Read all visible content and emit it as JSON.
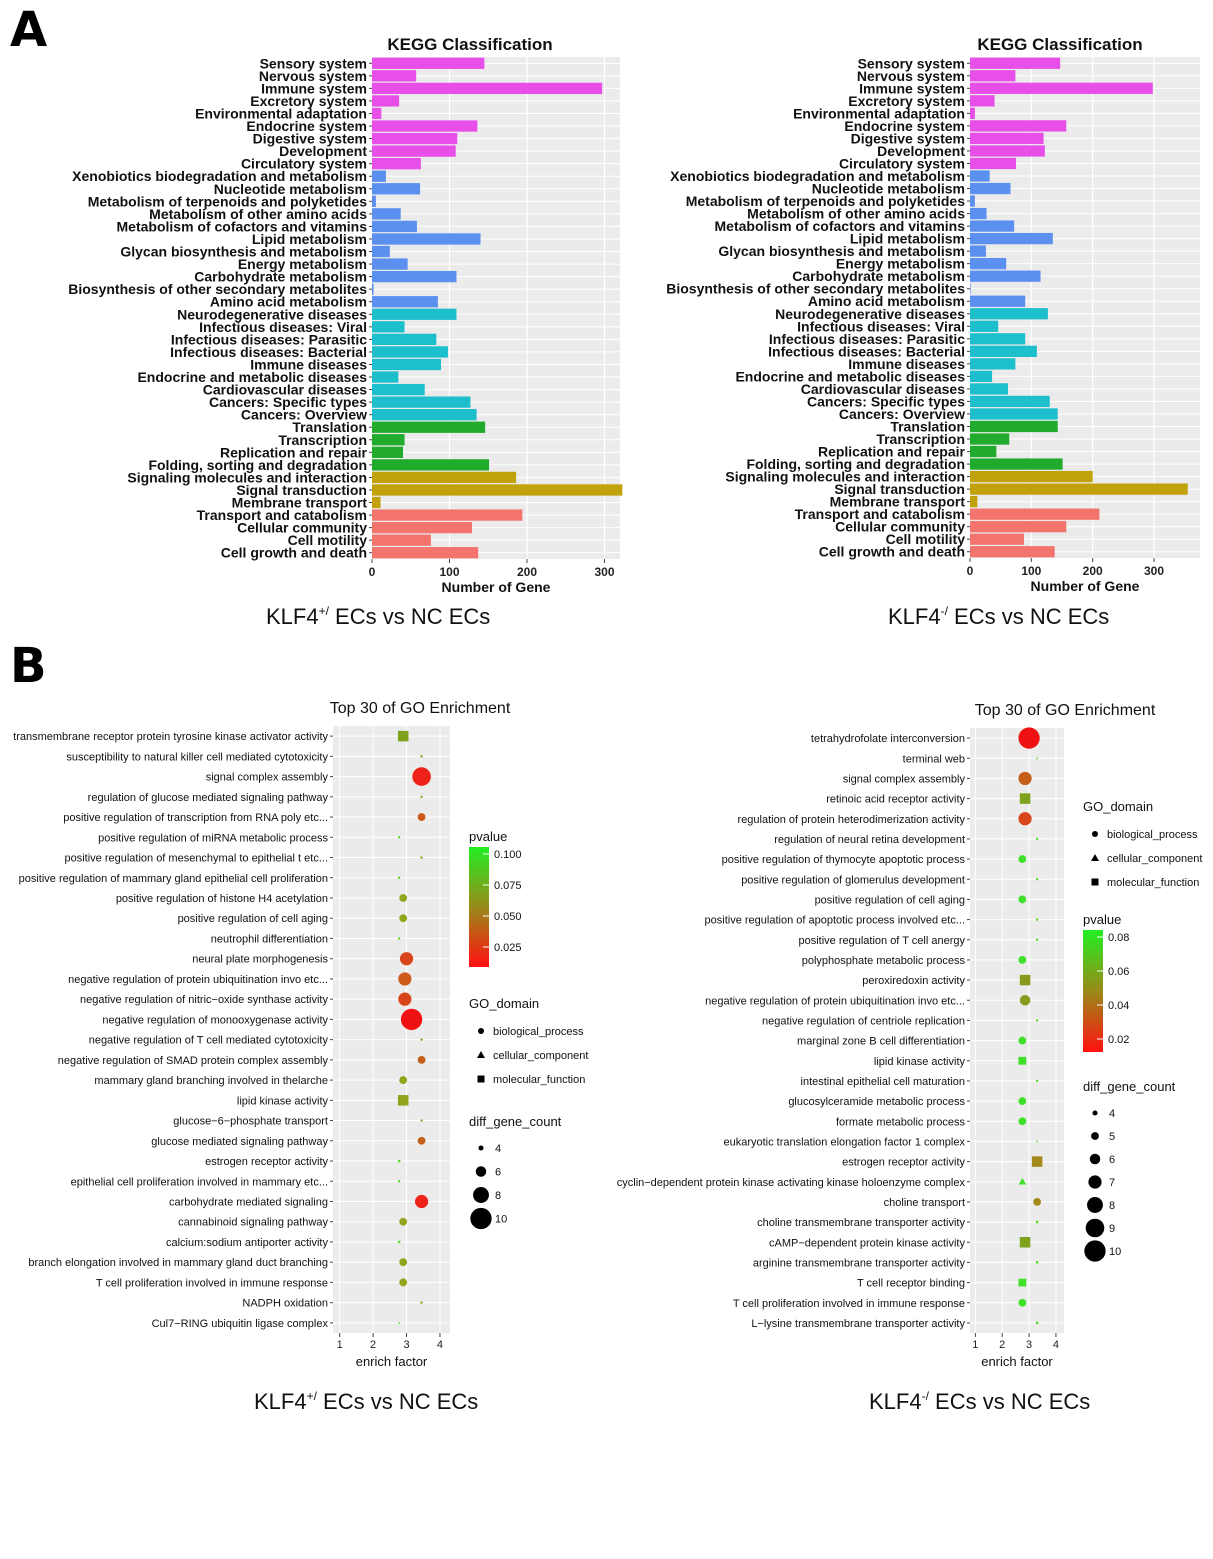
{
  "panels": {
    "a": "A",
    "b": "B"
  },
  "chart_data": [
    {
      "type": "bar",
      "title": "KEGG Classification",
      "xlabel": "Number of Gene",
      "caption": {
        "main": "KLF4",
        "sup": "+/",
        "rest": "ECs vs  NC ECs"
      },
      "xlim": [
        0,
        320
      ],
      "xticks": [
        0,
        100,
        200,
        300
      ],
      "categories": [
        "Sensory system",
        "Nervous system",
        "Immune system",
        "Excretory system",
        "Environmental adaptation",
        "Endocrine system",
        "Digestive system",
        "Development",
        "Circulatory system",
        "Xenobiotics biodegradation and metabolism",
        "Nucleotide metabolism",
        "Metabolism of terpenoids and polyketides",
        "Metabolism of other amino acids",
        "Metabolism of cofactors and vitamins",
        "Lipid metabolism",
        "Glycan biosynthesis and metabolism",
        "Energy metabolism",
        "Carbohydrate metabolism",
        "Biosynthesis of other secondary metabolites",
        "Amino acid metabolism",
        "Neurodegenerative diseases",
        "Infectious diseases: Viral",
        "Infectious diseases: Parasitic",
        "Infectious diseases: Bacterial",
        "Immune diseases",
        "Endocrine and metabolic diseases",
        "Cardiovascular diseases",
        "Cancers: Specific types",
        "Cancers: Overview",
        "Translation",
        "Transcription",
        "Replication and repair",
        "Folding, sorting and degradation",
        "Signaling molecules and interaction",
        "Signal transduction",
        "Membrane transport",
        "Transport and catabolism",
        "Cellular community",
        "Cell motility",
        "Cell growth and death"
      ],
      "values": [
        145,
        57,
        297,
        35,
        12,
        136,
        110,
        108,
        63,
        18,
        62,
        5,
        37,
        58,
        140,
        23,
        46,
        109,
        2,
        85,
        109,
        42,
        83,
        98,
        89,
        34,
        68,
        127,
        135,
        146,
        42,
        40,
        151,
        186,
        323,
        11,
        194,
        129,
        76,
        137
      ],
      "group_colors": [
        "#e84ee8",
        "#e84ee8",
        "#e84ee8",
        "#e84ee8",
        "#e84ee8",
        "#e84ee8",
        "#e84ee8",
        "#e84ee8",
        "#e84ee8",
        "#5b8ff0",
        "#5b8ff0",
        "#5b8ff0",
        "#5b8ff0",
        "#5b8ff0",
        "#5b8ff0",
        "#5b8ff0",
        "#5b8ff0",
        "#5b8ff0",
        "#5b8ff0",
        "#5b8ff0",
        "#1ebfcc",
        "#1ebfcc",
        "#1ebfcc",
        "#1ebfcc",
        "#1ebfcc",
        "#1ebfcc",
        "#1ebfcc",
        "#1ebfcc",
        "#1ebfcc",
        "#20ab2c",
        "#20ab2c",
        "#20ab2c",
        "#20ab2c",
        "#c2a20a",
        "#c2a20a",
        "#c2a20a",
        "#f2746c",
        "#f2746c",
        "#f2746c",
        "#f2746c"
      ]
    },
    {
      "type": "bar",
      "title": "KEGG Classification",
      "xlabel": "Number of Gene",
      "caption": {
        "main": "KLF4",
        "sup": "-/",
        "rest": "ECs vs  NC ECs"
      },
      "xlim": [
        0,
        375
      ],
      "xticks": [
        0,
        100,
        200,
        300
      ],
      "categories": [
        "Sensory system",
        "Nervous system",
        "Immune system",
        "Excretory system",
        "Environmental adaptation",
        "Endocrine system",
        "Digestive system",
        "Development",
        "Circulatory system",
        "Xenobiotics biodegradation and metabolism",
        "Nucleotide metabolism",
        "Metabolism of terpenoids and polyketides",
        "Metabolism of other amino acids",
        "Metabolism of cofactors and vitamins",
        "Lipid metabolism",
        "Glycan biosynthesis and metabolism",
        "Energy metabolism",
        "Carbohydrate metabolism",
        "Biosynthesis of other secondary metabolites",
        "Amino acid metabolism",
        "Neurodegenerative diseases",
        "Infectious diseases: Viral",
        "Infectious diseases: Parasitic",
        "Infectious diseases: Bacterial",
        "Immune diseases",
        "Endocrine and metabolic diseases",
        "Cardiovascular diseases",
        "Cancers: Specific types",
        "Cancers: Overview",
        "Translation",
        "Transcription",
        "Replication and repair",
        "Folding, sorting and degradation",
        "Signaling molecules and interaction",
        "Signal transduction",
        "Membrane transport",
        "Transport and catabolism",
        "Cellular community",
        "Cell motility",
        "Cell growth and death"
      ],
      "values": [
        147,
        74,
        298,
        40,
        8,
        157,
        120,
        122,
        75,
        32,
        66,
        8,
        27,
        72,
        135,
        26,
        59,
        115,
        1,
        90,
        127,
        46,
        90,
        109,
        74,
        36,
        62,
        130,
        143,
        143,
        64,
        43,
        151,
        200,
        355,
        12,
        211,
        157,
        88,
        138
      ],
      "group_colors": [
        "#e84ee8",
        "#e84ee8",
        "#e84ee8",
        "#e84ee8",
        "#e84ee8",
        "#e84ee8",
        "#e84ee8",
        "#e84ee8",
        "#e84ee8",
        "#5b8ff0",
        "#5b8ff0",
        "#5b8ff0",
        "#5b8ff0",
        "#5b8ff0",
        "#5b8ff0",
        "#5b8ff0",
        "#5b8ff0",
        "#5b8ff0",
        "#5b8ff0",
        "#5b8ff0",
        "#1ebfcc",
        "#1ebfcc",
        "#1ebfcc",
        "#1ebfcc",
        "#1ebfcc",
        "#1ebfcc",
        "#1ebfcc",
        "#1ebfcc",
        "#1ebfcc",
        "#20ab2c",
        "#20ab2c",
        "#20ab2c",
        "#20ab2c",
        "#c2a20a",
        "#c2a20a",
        "#c2a20a",
        "#f2746c",
        "#f2746c",
        "#f2746c",
        "#f2746c"
      ]
    },
    {
      "type": "scatter",
      "title": "Top 30 of GO Enrichment",
      "xlabel": "enrich factor",
      "caption": {
        "main": "KLF4",
        "sup": "+/",
        "rest": "ECs vs  NC ECs"
      },
      "xlim": [
        0.8,
        4.3
      ],
      "xticks": [
        1,
        2,
        3,
        4
      ],
      "legend": {
        "pvalue_title": "pvalue",
        "pvalue_ticks": [
          "0.100",
          "0.075",
          "0.050",
          "0.025"
        ],
        "domain_title": "GO_domain",
        "domains": [
          "biological_process",
          "cellular_component",
          "molecular_function"
        ],
        "count_title": "diff_gene_count",
        "counts": [
          "4",
          "6",
          "8",
          "10"
        ]
      },
      "categories": [
        "transmembrane receptor protein tyrosine kinase activator activity",
        "susceptibility to natural killer cell mediated cytotoxicity",
        "signal complex assembly",
        "regulation of glucose mediated signaling pathway",
        "positive regulation of transcription from RNA poly etc...",
        "positive regulation of miRNA metabolic process",
        "positive regulation of mesenchymal to epithelial t etc...",
        "positive regulation of mammary gland epithelial cell proliferation",
        "positive regulation of histone H4 acetylation",
        "positive regulation of cell aging",
        "neutrophil differentiation",
        "neural plate morphogenesis",
        "negative regulation of protein ubiquitination invo etc...",
        "negative regulation of nitric−oxide synthase activity",
        "negative regulation of monooxygenase activity",
        "negative regulation of T cell mediated cytotoxicity",
        "negative regulation of SMAD protein complex assembly",
        "mammary gland branching involved in thelarche",
        "lipid kinase activity",
        "glucose−6−phosphate transport",
        "glucose mediated signaling pathway",
        "estrogen receptor activity",
        "epithelial cell proliferation involved in mammary   etc...",
        "carbohydrate mediated signaling",
        "cannabinoid signaling pathway",
        "calcium:sodium antiporter activity",
        "branch elongation involved in mammary gland duct branching",
        "T cell proliferation involved in immune response",
        "NADPH oxidation",
        "Cul7−RING ubiquitin ligase complex"
      ],
      "points": [
        {
          "x": 2.9,
          "count": 6,
          "domain": "molecular_function",
          "color": "#7fa21c"
        },
        {
          "x": 3.45,
          "count": 3,
          "domain": "biological_process",
          "color": "#a09c20"
        },
        {
          "x": 3.45,
          "count": 9,
          "domain": "biological_process",
          "color": "#ee2218"
        },
        {
          "x": 3.45,
          "count": 3,
          "domain": "biological_process",
          "color": "#a09c20"
        },
        {
          "x": 3.45,
          "count": 5,
          "domain": "biological_process",
          "color": "#cf5a18"
        },
        {
          "x": 2.78,
          "count": 3,
          "domain": "biological_process",
          "color": "#58da28"
        },
        {
          "x": 3.45,
          "count": 3,
          "domain": "biological_process",
          "color": "#a09c20"
        },
        {
          "x": 2.78,
          "count": 3,
          "domain": "biological_process",
          "color": "#58da28"
        },
        {
          "x": 2.9,
          "count": 5,
          "domain": "biological_process",
          "color": "#92a41c"
        },
        {
          "x": 2.9,
          "count": 5,
          "domain": "biological_process",
          "color": "#92a41c"
        },
        {
          "x": 2.78,
          "count": 3,
          "domain": "biological_process",
          "color": "#58da28"
        },
        {
          "x": 3.0,
          "count": 7,
          "domain": "biological_process",
          "color": "#d9451a"
        },
        {
          "x": 2.95,
          "count": 7,
          "domain": "biological_process",
          "color": "#cf5a1a"
        },
        {
          "x": 2.95,
          "count": 7,
          "domain": "biological_process",
          "color": "#d9451a"
        },
        {
          "x": 3.15,
          "count": 10,
          "domain": "biological_process",
          "color": "#f01212"
        },
        {
          "x": 3.45,
          "count": 3,
          "domain": "biological_process",
          "color": "#a09c20"
        },
        {
          "x": 3.45,
          "count": 5,
          "domain": "biological_process",
          "color": "#c45e18"
        },
        {
          "x": 2.9,
          "count": 5,
          "domain": "biological_process",
          "color": "#92a41c"
        },
        {
          "x": 2.9,
          "count": 6,
          "domain": "molecular_function",
          "color": "#92a41c"
        },
        {
          "x": 3.45,
          "count": 3,
          "domain": "biological_process",
          "color": "#a09c20"
        },
        {
          "x": 3.45,
          "count": 5,
          "domain": "biological_process",
          "color": "#c45e18"
        },
        {
          "x": 2.78,
          "count": 3,
          "domain": "molecular_function",
          "color": "#58da28"
        },
        {
          "x": 2.78,
          "count": 3,
          "domain": "biological_process",
          "color": "#58da28"
        },
        {
          "x": 3.45,
          "count": 7,
          "domain": "biological_process",
          "color": "#ee2218"
        },
        {
          "x": 2.9,
          "count": 5,
          "domain": "biological_process",
          "color": "#92a41c"
        },
        {
          "x": 2.78,
          "count": 3,
          "domain": "molecular_function",
          "color": "#58da28"
        },
        {
          "x": 2.9,
          "count": 5,
          "domain": "biological_process",
          "color": "#92a41c"
        },
        {
          "x": 2.9,
          "count": 5,
          "domain": "biological_process",
          "color": "#92a41c"
        },
        {
          "x": 3.45,
          "count": 3,
          "domain": "biological_process",
          "color": "#a09c20"
        },
        {
          "x": 2.78,
          "count": 3,
          "domain": "cellular_component",
          "color": "#58da28"
        }
      ]
    },
    {
      "type": "scatter",
      "title": "Top 30 of GO Enrichment",
      "xlabel": "enrich factor",
      "caption": {
        "main": "KLF4",
        "sup": "-/",
        "rest": "ECs vs  NC ECs"
      },
      "xlim": [
        0.8,
        4.3
      ],
      "xticks": [
        1,
        2,
        3,
        4
      ],
      "legend": {
        "pvalue_title": "pvalue",
        "pvalue_ticks": [
          "0.08",
          "0.06",
          "0.04",
          "0.02"
        ],
        "domain_title": "GO_domain",
        "domains": [
          "biological_process",
          "cellular_component",
          "molecular_function"
        ],
        "count_title": "diff_gene_count",
        "counts": [
          "4",
          "5",
          "6",
          "7",
          "8",
          "9",
          "10"
        ]
      },
      "categories": [
        "tetrahydrofolate interconversion",
        "terminal web",
        "signal complex assembly",
        "retinoic acid receptor activity",
        "regulation of protein heterodimerization activity",
        "regulation of neural retina development",
        "positive regulation of thymocyte apoptotic process",
        "positive regulation of glomerulus development",
        "positive regulation of cell aging",
        "positive regulation of apoptotic process involved  etc...",
        "positive regulation of T cell anergy",
        "polyphosphate metabolic process",
        "peroxiredoxin activity",
        "negative regulation of protein ubiquitination invo etc...",
        "negative regulation of centriole replication",
        "marginal zone B cell differentiation",
        "lipid kinase activity",
        "intestinal epithelial cell maturation",
        "glucosylceramide metabolic process",
        "formate metabolic process",
        "eukaryotic translation elongation factor 1 complex",
        "estrogen receptor activity",
        "cyclin−dependent protein kinase activating kinase holoenzyme complex",
        "choline transport",
        "choline transmembrane transporter activity",
        "cAMP−dependent protein kinase activity",
        "arginine transmembrane transporter activity",
        "T cell receptor binding",
        "T cell proliferation involved in immune response",
        "L−lysine transmembrane transporter activity"
      ],
      "points": [
        {
          "x": 3.0,
          "count": 10,
          "domain": "biological_process",
          "color": "#f01212"
        },
        {
          "x": 3.3,
          "count": 3,
          "domain": "cellular_component",
          "color": "#58da28"
        },
        {
          "x": 2.85,
          "count": 7,
          "domain": "biological_process",
          "color": "#c45e18"
        },
        {
          "x": 2.85,
          "count": 6,
          "domain": "molecular_function",
          "color": "#7fa21c"
        },
        {
          "x": 2.85,
          "count": 7,
          "domain": "biological_process",
          "color": "#d9451a"
        },
        {
          "x": 3.3,
          "count": 3,
          "domain": "biological_process",
          "color": "#58da28"
        },
        {
          "x": 2.75,
          "count": 5,
          "domain": "biological_process",
          "color": "#3fe02a"
        },
        {
          "x": 3.3,
          "count": 3,
          "domain": "biological_process",
          "color": "#58da28"
        },
        {
          "x": 2.75,
          "count": 5,
          "domain": "biological_process",
          "color": "#3fe02a"
        },
        {
          "x": 3.3,
          "count": 3,
          "domain": "biological_process",
          "color": "#58da28"
        },
        {
          "x": 3.3,
          "count": 3,
          "domain": "biological_process",
          "color": "#58da28"
        },
        {
          "x": 2.75,
          "count": 5,
          "domain": "biological_process",
          "color": "#3fe02a"
        },
        {
          "x": 2.85,
          "count": 6,
          "domain": "molecular_function",
          "color": "#8a9a1e"
        },
        {
          "x": 2.85,
          "count": 6,
          "domain": "biological_process",
          "color": "#8a9a1e"
        },
        {
          "x": 3.3,
          "count": 3,
          "domain": "biological_process",
          "color": "#58da28"
        },
        {
          "x": 2.75,
          "count": 5,
          "domain": "biological_process",
          "color": "#3fe02a"
        },
        {
          "x": 2.75,
          "count": 5,
          "domain": "molecular_function",
          "color": "#3fe02a"
        },
        {
          "x": 3.3,
          "count": 3,
          "domain": "biological_process",
          "color": "#58da28"
        },
        {
          "x": 2.75,
          "count": 5,
          "domain": "biological_process",
          "color": "#3fe02a"
        },
        {
          "x": 2.75,
          "count": 5,
          "domain": "biological_process",
          "color": "#3fe02a"
        },
        {
          "x": 3.3,
          "count": 3,
          "domain": "cellular_component",
          "color": "#58da28"
        },
        {
          "x": 3.3,
          "count": 6,
          "domain": "molecular_function",
          "color": "#a48a1a"
        },
        {
          "x": 2.75,
          "count": 5,
          "domain": "cellular_component",
          "color": "#3fe02a"
        },
        {
          "x": 3.3,
          "count": 5,
          "domain": "biological_process",
          "color": "#a48a1a"
        },
        {
          "x": 3.3,
          "count": 3,
          "domain": "molecular_function",
          "color": "#58da28"
        },
        {
          "x": 2.85,
          "count": 6,
          "domain": "molecular_function",
          "color": "#7fa21c"
        },
        {
          "x": 3.3,
          "count": 3,
          "domain": "molecular_function",
          "color": "#58da28"
        },
        {
          "x": 2.75,
          "count": 5,
          "domain": "molecular_function",
          "color": "#3fe02a"
        },
        {
          "x": 2.75,
          "count": 5,
          "domain": "biological_process",
          "color": "#3fe02a"
        },
        {
          "x": 3.3,
          "count": 3,
          "domain": "molecular_function",
          "color": "#58da28"
        }
      ]
    }
  ]
}
